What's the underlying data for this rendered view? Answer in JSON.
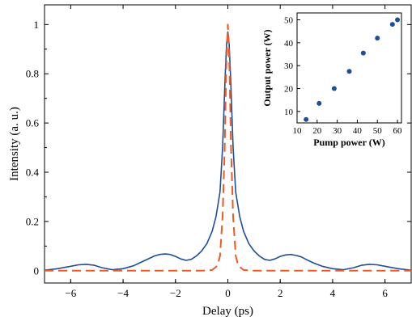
{
  "chart_data": [
    {
      "type": "line",
      "xlabel": "Delay (ps)",
      "ylabel": "Intensity (a. u.)",
      "xlim": [
        -7,
        7
      ],
      "ylim": [
        -0.05,
        1.08
      ],
      "x_ticks": [
        -6,
        -4,
        -2,
        0,
        2,
        4,
        6
      ],
      "x_tick_labels": [
        "−6",
        "−4",
        "−2",
        "0",
        "2",
        "4",
        "6"
      ],
      "y_ticks": [
        0,
        0.2,
        0.4,
        0.6,
        0.8,
        1
      ],
      "y_tick_labels": [
        "0",
        "0.2",
        "0.4",
        "0.6",
        "0.8",
        "1"
      ],
      "grid": false,
      "series": [
        {
          "style": "solid",
          "color": "#1f4e96",
          "x": [
            -7,
            -6.5,
            -6,
            -5.7,
            -5.4,
            -5.1,
            -4.8,
            -4.4,
            -4,
            -3.6,
            -3.3,
            -3.0,
            -2.8,
            -2.6,
            -2.4,
            -2.2,
            -2.0,
            -1.8,
            -1.6,
            -1.4,
            -1.2,
            -1.0,
            -0.8,
            -0.6,
            -0.45,
            -0.3,
            -0.2,
            -0.1,
            -0.05,
            0,
            0.05,
            0.1,
            0.2,
            0.3,
            0.45,
            0.6,
            0.8,
            1.0,
            1.2,
            1.4,
            1.6,
            1.8,
            2.0,
            2.2,
            2.4,
            2.6,
            2.8,
            3.0,
            3.3,
            3.6,
            4.0,
            4.4,
            4.8,
            5.1,
            5.4,
            5.7,
            6.0,
            6.5,
            7
          ],
          "y": [
            0.002,
            0.008,
            0.018,
            0.024,
            0.026,
            0.022,
            0.012,
            0.004,
            0.008,
            0.02,
            0.035,
            0.05,
            0.06,
            0.066,
            0.068,
            0.066,
            0.058,
            0.048,
            0.042,
            0.046,
            0.06,
            0.08,
            0.11,
            0.16,
            0.22,
            0.32,
            0.5,
            0.8,
            0.92,
            0.97,
            0.92,
            0.8,
            0.5,
            0.32,
            0.22,
            0.16,
            0.11,
            0.08,
            0.06,
            0.046,
            0.042,
            0.048,
            0.058,
            0.064,
            0.066,
            0.062,
            0.056,
            0.045,
            0.03,
            0.018,
            0.008,
            0.004,
            0.012,
            0.022,
            0.026,
            0.024,
            0.018,
            0.008,
            0.002
          ]
        },
        {
          "style": "dashed",
          "color": "#ef5a24",
          "x": [
            -7,
            -1.0,
            -0.6,
            -0.4,
            -0.3,
            -0.2,
            -0.12,
            -0.06,
            0,
            0.06,
            0.12,
            0.2,
            0.3,
            0.4,
            0.6,
            1.0,
            7
          ],
          "y": [
            0,
            0,
            0.003,
            0.02,
            0.06,
            0.22,
            0.5,
            0.84,
            1.0,
            0.84,
            0.5,
            0.22,
            0.06,
            0.02,
            0.003,
            0,
            0
          ]
        }
      ]
    },
    {
      "type": "scatter",
      "xlabel": "Pump power (W)",
      "ylabel": "Output power (W)",
      "xlim": [
        10,
        62
      ],
      "ylim": [
        5,
        53
      ],
      "x_ticks": [
        10,
        20,
        30,
        40,
        50,
        60
      ],
      "y_ticks": [
        10,
        20,
        30,
        40,
        50
      ],
      "grid": false,
      "color": "#1f4e96",
      "x": [
        14.5,
        21,
        28.5,
        36,
        43,
        50,
        57.5,
        60
      ],
      "y": [
        6.5,
        13.5,
        20,
        27.5,
        35.5,
        42,
        48,
        50
      ]
    }
  ]
}
